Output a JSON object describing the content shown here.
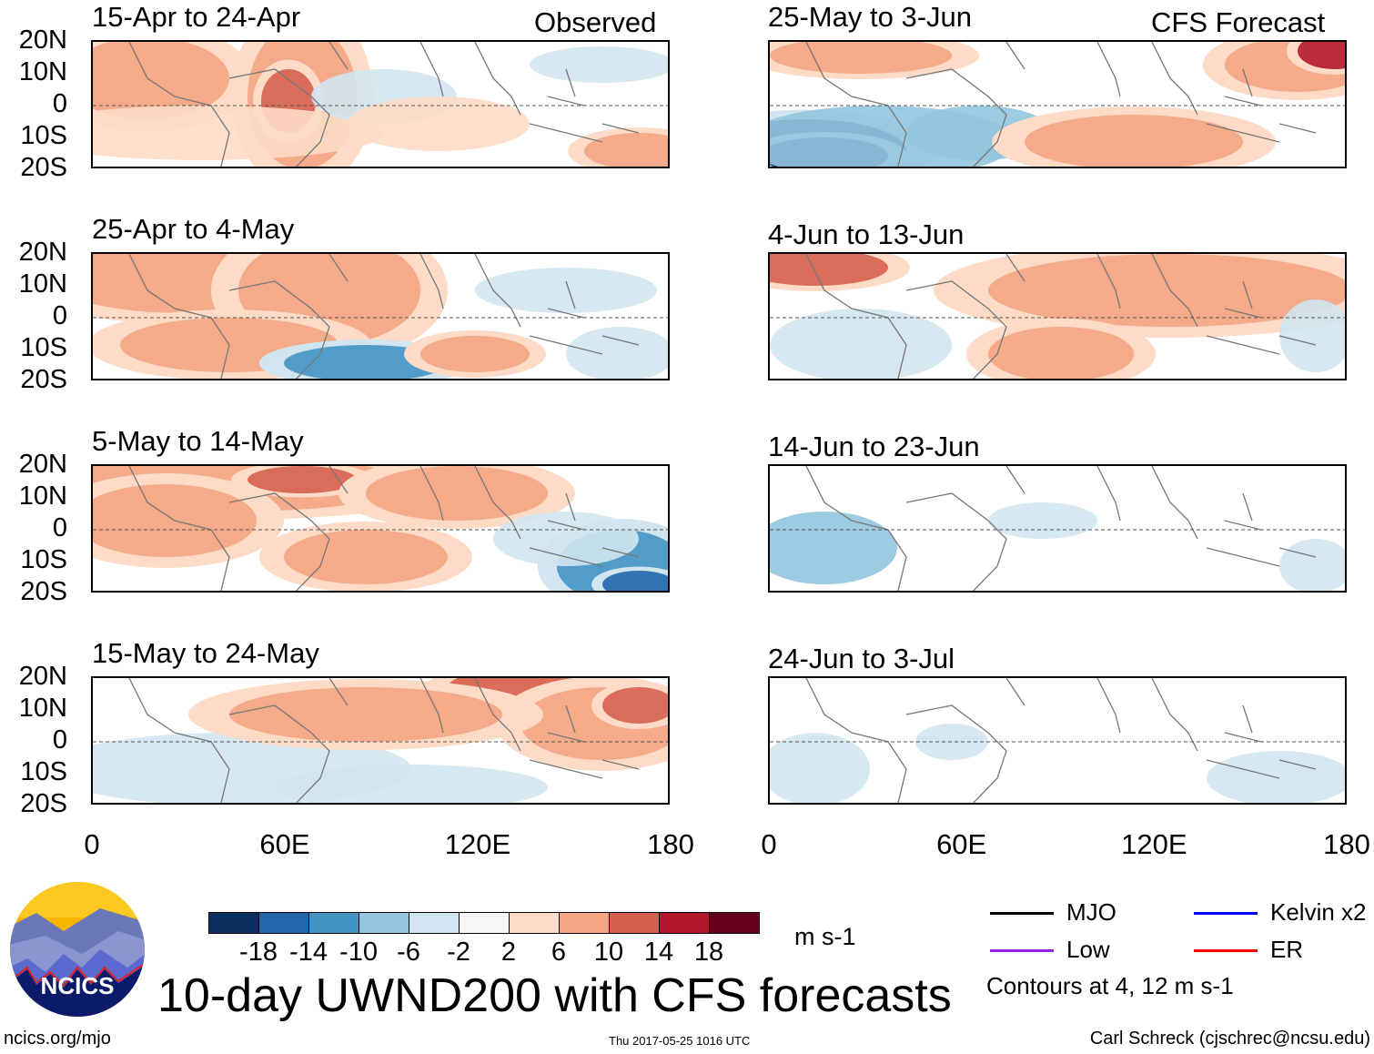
{
  "figure": {
    "title": "10-day UWND200 with CFS forecasts",
    "observed_label": "Observed",
    "forecast_label": "CFS Forecast",
    "units": "m s-1",
    "footer_left": "ncics.org/mjo",
    "footer_center": "Thu 2017-05-25 1016 UTC",
    "footer_right": "Carl Schreck (cjschrec@ncsu.edu)",
    "logo_text": "NCICS",
    "contour_note": "Contours at 4, 12 m s-1"
  },
  "panels_observed": [
    {
      "title": "15-Apr to 24-Apr"
    },
    {
      "title": "25-Apr to 4-May"
    },
    {
      "title": "5-May to 14-May"
    },
    {
      "title": "15-May to 24-May"
    }
  ],
  "panels_forecast": [
    {
      "title": "25-May to 3-Jun"
    },
    {
      "title": "4-Jun to 13-Jun"
    },
    {
      "title": "14-Jun to 23-Jun"
    },
    {
      "title": "24-Jun to 3-Jul"
    }
  ],
  "y_ticks": [
    "20N",
    "10N",
    "0",
    "10S",
    "20S"
  ],
  "x_ticks": [
    "0",
    "60E",
    "120E",
    "180"
  ],
  "colorbar": {
    "colors": [
      "#0a2f5f",
      "#2166ac",
      "#4393c3",
      "#92c5de",
      "#d1e5f0",
      "#f7f7f7",
      "#fddbc7",
      "#f4a582",
      "#d6604d",
      "#b2182b",
      "#67001f"
    ],
    "labels": [
      "-18",
      "-14",
      "-10",
      "-6",
      "-2",
      "2",
      "6",
      "10",
      "14",
      "18"
    ]
  },
  "legend": [
    {
      "label": "MJO",
      "color": "#000000"
    },
    {
      "label": "Kelvin x2",
      "color": "#0000ff"
    },
    {
      "label": "Low",
      "color": "#a020f0"
    },
    {
      "label": "ER",
      "color": "#ff0000"
    }
  ]
}
